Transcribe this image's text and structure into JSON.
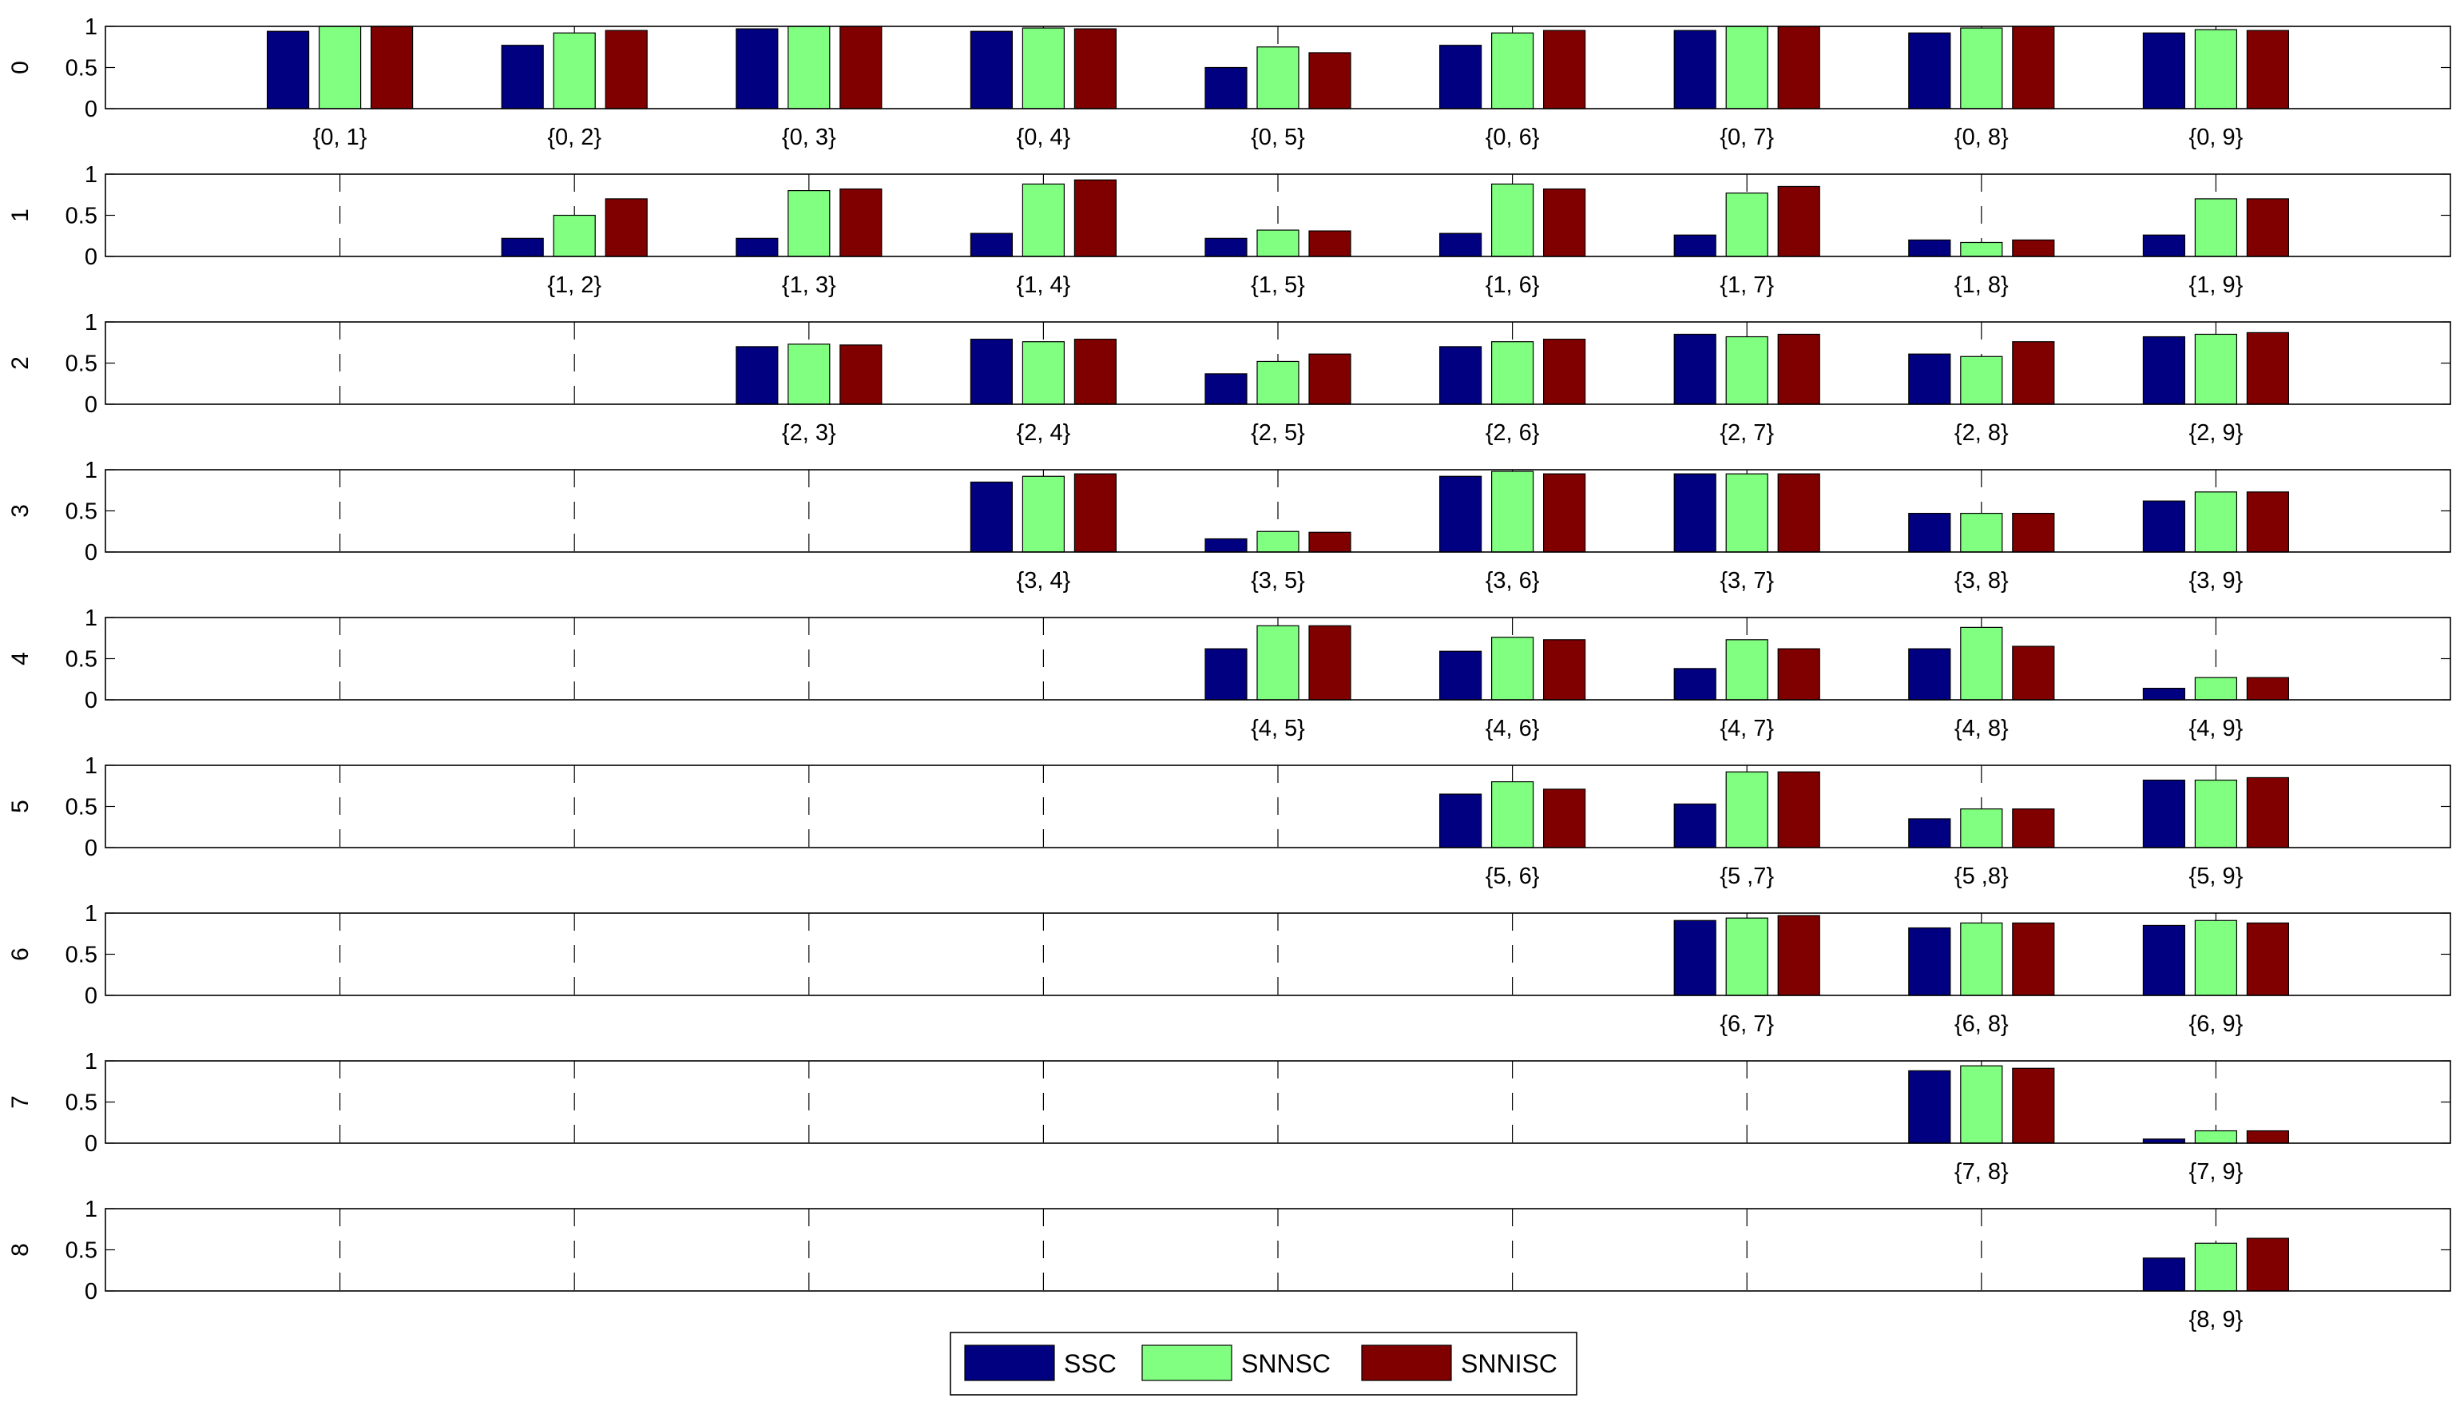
{
  "chart_data": {
    "type": "bar",
    "series": [
      {
        "name": "SSC",
        "color": "#000080"
      },
      {
        "name": "SNNSC",
        "color": "#80FF80"
      },
      {
        "name": "SNNISC",
        "color": "#800000"
      }
    ],
    "legend_position": "bottom-center",
    "x_categories": [
      1,
      2,
      3,
      4,
      5,
      6,
      7,
      8,
      9
    ],
    "ylim": [
      0,
      1
    ],
    "yticks": [
      "0",
      "0.5",
      "1"
    ],
    "grid": "dashed vertical",
    "panels": [
      {
        "ylabel": "0",
        "groups": [
          {
            "x": 1,
            "label": "{0, 1}",
            "values": [
              0.94,
              1.0,
              1.0
            ]
          },
          {
            "x": 2,
            "label": "{0, 2}",
            "values": [
              0.77,
              0.92,
              0.95
            ]
          },
          {
            "x": 3,
            "label": "{0, 3}",
            "values": [
              0.97,
              1.0,
              1.0
            ]
          },
          {
            "x": 4,
            "label": "{0, 4}",
            "values": [
              0.94,
              0.98,
              0.97
            ]
          },
          {
            "x": 5,
            "label": "{0, 5}",
            "values": [
              0.5,
              0.75,
              0.68
            ]
          },
          {
            "x": 6,
            "label": "{0, 6}",
            "values": [
              0.77,
              0.92,
              0.95
            ]
          },
          {
            "x": 7,
            "label": "{0, 7}",
            "values": [
              0.95,
              1.0,
              1.0
            ]
          },
          {
            "x": 8,
            "label": "{0, 8}",
            "values": [
              0.92,
              0.98,
              1.0
            ]
          },
          {
            "x": 9,
            "label": "{0, 9}",
            "values": [
              0.92,
              0.96,
              0.95
            ]
          }
        ]
      },
      {
        "ylabel": "1",
        "groups": [
          {
            "x": 2,
            "label": "{1, 2}",
            "values": [
              0.22,
              0.5,
              0.7
            ]
          },
          {
            "x": 3,
            "label": "{1, 3}",
            "values": [
              0.22,
              0.8,
              0.82
            ]
          },
          {
            "x": 4,
            "label": "{1, 4}",
            "values": [
              0.28,
              0.88,
              0.93
            ]
          },
          {
            "x": 5,
            "label": "{1, 5}",
            "values": [
              0.22,
              0.32,
              0.31
            ]
          },
          {
            "x": 6,
            "label": "{1, 6}",
            "values": [
              0.28,
              0.88,
              0.82
            ]
          },
          {
            "x": 7,
            "label": "{1, 7}",
            "values": [
              0.26,
              0.77,
              0.85
            ]
          },
          {
            "x": 8,
            "label": "{1, 8}",
            "values": [
              0.2,
              0.17,
              0.2
            ]
          },
          {
            "x": 9,
            "label": "{1, 9}",
            "values": [
              0.26,
              0.7,
              0.7
            ]
          }
        ]
      },
      {
        "ylabel": "2",
        "groups": [
          {
            "x": 3,
            "label": "{2, 3}",
            "values": [
              0.7,
              0.73,
              0.72
            ]
          },
          {
            "x": 4,
            "label": "{2, 4}",
            "values": [
              0.79,
              0.76,
              0.79
            ]
          },
          {
            "x": 5,
            "label": "{2, 5}",
            "values": [
              0.37,
              0.52,
              0.61
            ]
          },
          {
            "x": 6,
            "label": "{2, 6}",
            "values": [
              0.7,
              0.76,
              0.79
            ]
          },
          {
            "x": 7,
            "label": "{2, 7}",
            "values": [
              0.85,
              0.82,
              0.85
            ]
          },
          {
            "x": 8,
            "label": "{2, 8}",
            "values": [
              0.61,
              0.58,
              0.76
            ]
          },
          {
            "x": 9,
            "label": "{2, 9}",
            "values": [
              0.82,
              0.85,
              0.87
            ]
          }
        ]
      },
      {
        "ylabel": "3",
        "groups": [
          {
            "x": 4,
            "label": "{3, 4}",
            "values": [
              0.85,
              0.92,
              0.95
            ]
          },
          {
            "x": 5,
            "label": "{3, 5}",
            "values": [
              0.16,
              0.25,
              0.24
            ]
          },
          {
            "x": 6,
            "label": "{3, 6}",
            "values": [
              0.92,
              0.98,
              0.95
            ]
          },
          {
            "x": 7,
            "label": "{3, 7}",
            "values": [
              0.95,
              0.95,
              0.95
            ]
          },
          {
            "x": 8,
            "label": "{3, 8}",
            "values": [
              0.47,
              0.47,
              0.47
            ]
          },
          {
            "x": 9,
            "label": "{3, 9}",
            "values": [
              0.62,
              0.73,
              0.73
            ]
          }
        ]
      },
      {
        "ylabel": "4",
        "groups": [
          {
            "x": 5,
            "label": "{4, 5}",
            "values": [
              0.62,
              0.9,
              0.9
            ]
          },
          {
            "x": 6,
            "label": "{4, 6}",
            "values": [
              0.59,
              0.76,
              0.73
            ]
          },
          {
            "x": 7,
            "label": "{4, 7}",
            "values": [
              0.38,
              0.73,
              0.62
            ]
          },
          {
            "x": 8,
            "label": "{4, 8}",
            "values": [
              0.62,
              0.88,
              0.65
            ]
          },
          {
            "x": 9,
            "label": "{4, 9}",
            "values": [
              0.14,
              0.27,
              0.27
            ]
          }
        ]
      },
      {
        "ylabel": "5",
        "groups": [
          {
            "x": 6,
            "label": "{5, 6}",
            "values": [
              0.65,
              0.8,
              0.71
            ]
          },
          {
            "x": 7,
            "label": "{5 ,7}",
            "values": [
              0.53,
              0.92,
              0.92
            ]
          },
          {
            "x": 8,
            "label": "{5 ,8}",
            "values": [
              0.35,
              0.47,
              0.47
            ]
          },
          {
            "x": 9,
            "label": "{5, 9}",
            "values": [
              0.82,
              0.82,
              0.85
            ]
          }
        ]
      },
      {
        "ylabel": "6",
        "groups": [
          {
            "x": 7,
            "label": "{6, 7}",
            "values": [
              0.91,
              0.94,
              0.97
            ]
          },
          {
            "x": 8,
            "label": "{6, 8}",
            "values": [
              0.82,
              0.88,
              0.88
            ]
          },
          {
            "x": 9,
            "label": "{6, 9}",
            "values": [
              0.85,
              0.91,
              0.88
            ]
          }
        ]
      },
      {
        "ylabel": "7",
        "groups": [
          {
            "x": 8,
            "label": "{7, 8}",
            "values": [
              0.88,
              0.94,
              0.91
            ]
          },
          {
            "x": 9,
            "label": "{7, 9}",
            "values": [
              0.05,
              0.15,
              0.15
            ]
          }
        ]
      },
      {
        "ylabel": "8",
        "groups": [
          {
            "x": 9,
            "label": "{8, 9}",
            "values": [
              0.4,
              0.58,
              0.64
            ]
          }
        ]
      }
    ]
  }
}
